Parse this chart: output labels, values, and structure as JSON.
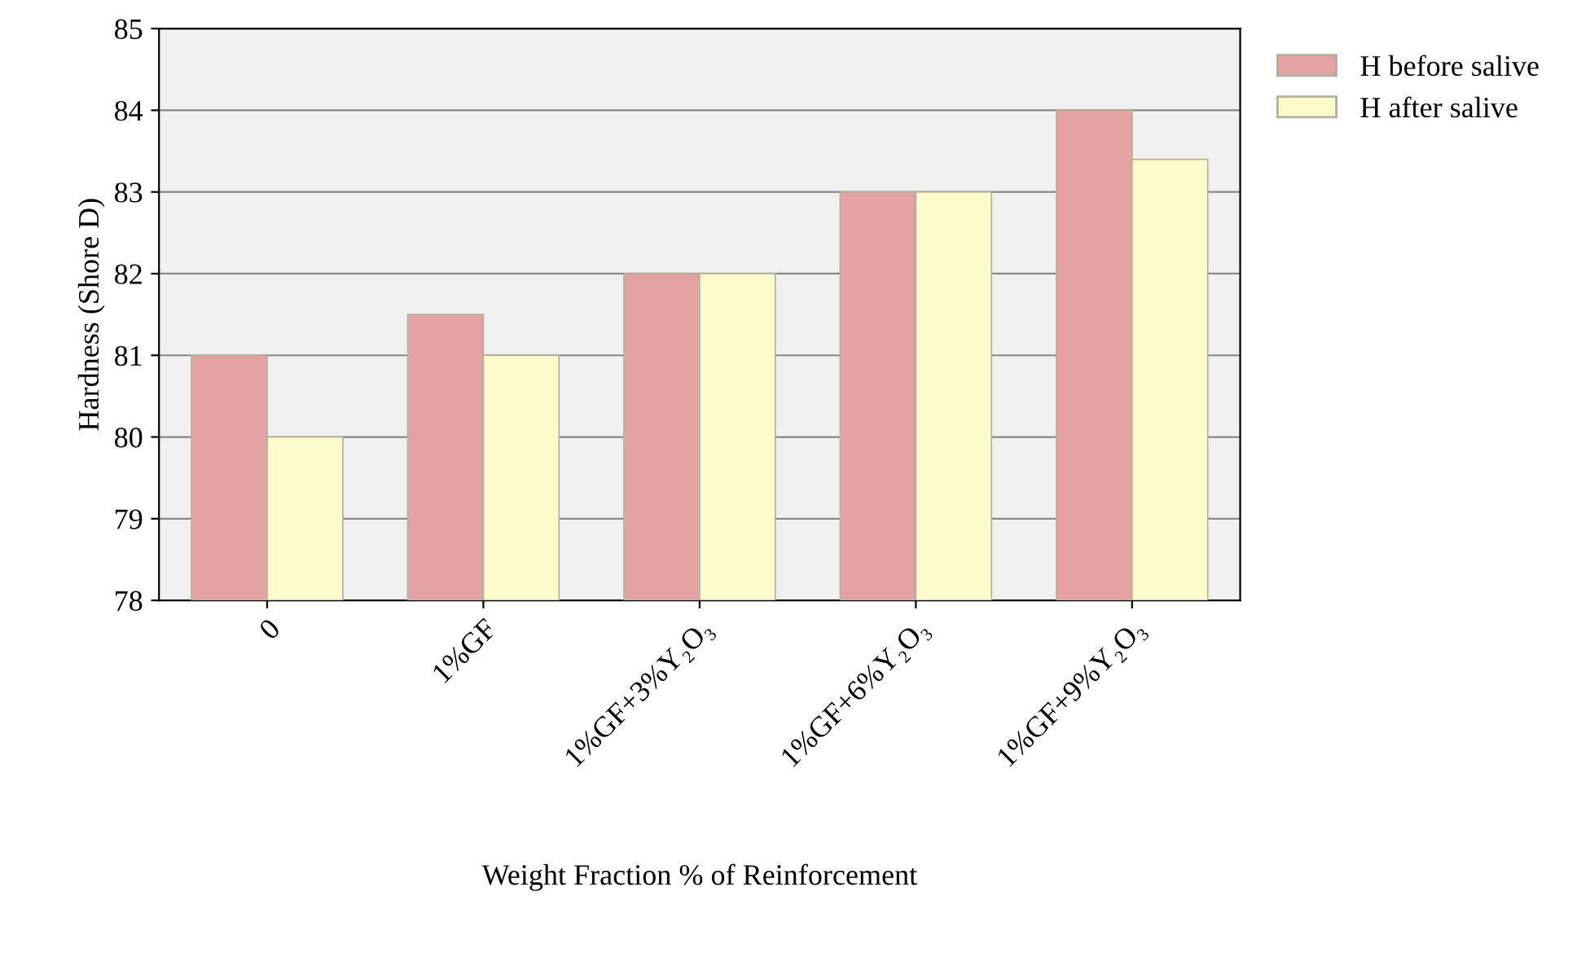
{
  "chart_data": {
    "type": "bar",
    "xlabel": "Weight Fraction % of Reinforcement",
    "ylabel": "Hardness (Shore D)",
    "categories": [
      "0",
      "1%GF",
      "1%GF+3%Y₂O₃",
      "1%GF+6%Y₂O₃",
      "1%GF+9%Y₂O₃"
    ],
    "series": [
      {
        "name": "H before salive",
        "color": "#e4a3a3",
        "values": [
          81,
          81.5,
          82,
          83,
          84
        ]
      },
      {
        "name": "H after salive",
        "color": "#fbfbcc",
        "values": [
          80,
          81,
          82,
          83,
          83.4
        ]
      }
    ],
    "ylim": [
      78,
      85
    ],
    "yticks": [
      78,
      79,
      80,
      81,
      82,
      83,
      84,
      85
    ],
    "grid": "y",
    "legend": "top right"
  }
}
